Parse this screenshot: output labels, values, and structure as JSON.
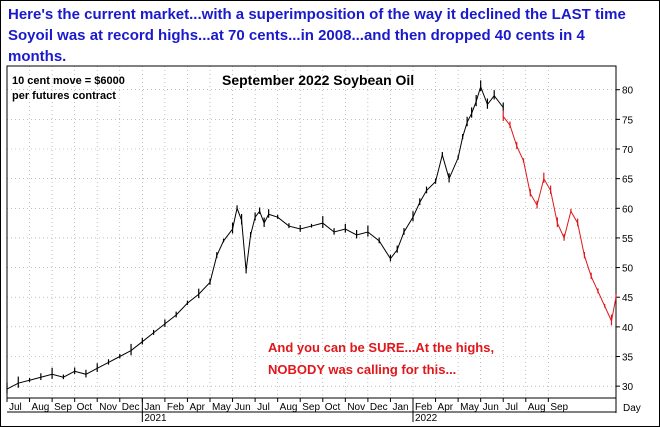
{
  "headline": "Here's the current market...with a superimposition of the way it declined the LAST time Soyoil was at record highs...at 70 cents...in 2008...and then dropped 40 cents in 4 months.",
  "note": {
    "line1": "10 cent move = $6000",
    "line2": "per futures contract"
  },
  "callout": {
    "line1": "And you can be SURE...At the highs,",
    "line2": "NOBODY was calling for this..."
  },
  "colors": {
    "headline": "#1a1acc",
    "price": "#000000",
    "projection": "#e0171b",
    "callout": "#e0171b",
    "grid": "#9a9a9a"
  },
  "chart_data": {
    "type": "line",
    "title": "September 2022 Soybean Oil",
    "xlabel": "Day",
    "ylabel": "",
    "ylim": [
      28,
      84
    ],
    "y_ticks": [
      30,
      35,
      40,
      45,
      50,
      55,
      60,
      65,
      70,
      75,
      80
    ],
    "grid": true,
    "x_labels": [
      "Jul",
      "Aug",
      "Sep",
      "Oct",
      "Nov",
      "Dec",
      "Jan",
      "Feb",
      "Apr",
      "May",
      "Jun",
      "Jul",
      "Aug",
      "Sep",
      "Oct",
      "Nov",
      "Dec",
      "Jan",
      "Feb",
      "Apr",
      "May",
      "Jun",
      "Jul",
      "Aug",
      "Sep"
    ],
    "year_labels": [
      {
        "label": "2021",
        "after_month": 6
      },
      {
        "label": "2022",
        "after_month": 18
      }
    ],
    "months_total": 27,
    "series": [
      {
        "style": "actual",
        "x": [
          0,
          0.5,
          1,
          1.5,
          2,
          2.5,
          3,
          3.5,
          4,
          4.5,
          5,
          5.5,
          6,
          6.5,
          7,
          7.5,
          8,
          8.5,
          9,
          9.3,
          9.6,
          10,
          10.2,
          10.4,
          10.6,
          10.8,
          11,
          11.2,
          11.4,
          11.6,
          12,
          12.5,
          13,
          13.5,
          14,
          14.5,
          15,
          15.5,
          16,
          16.5,
          17,
          17.3,
          17.6,
          18,
          18.3,
          18.6,
          19,
          19.3,
          19.6,
          20,
          20.2,
          20.4,
          20.6,
          20.8,
          21,
          21.3,
          21.6,
          22
        ],
        "y": [
          29.5,
          30.5,
          31,
          31.5,
          32,
          31.5,
          32.5,
          32,
          33,
          34,
          35,
          36,
          37.5,
          39,
          40.5,
          42,
          44,
          45.5,
          47.5,
          52,
          54.5,
          56.5,
          60,
          58,
          49.5,
          55.5,
          58.5,
          59.5,
          57.5,
          59,
          58.5,
          57,
          56.5,
          57,
          57.5,
          56,
          56.5,
          55.5,
          56,
          54.5,
          51.5,
          53,
          56,
          58.5,
          61,
          63,
          64.5,
          69,
          65,
          68.5,
          72,
          74.5,
          76,
          78,
          80.5,
          77.5,
          79,
          77
        ],
        "color": "#000000"
      },
      {
        "style": "2008 decline superimposed",
        "x": [
          22,
          22.3,
          22.6,
          22.9,
          23.2,
          23.5,
          23.8,
          24.1,
          24.4,
          24.7,
          25,
          25.3,
          25.6,
          25.9,
          26.2,
          26.5,
          26.8,
          27
        ],
        "y": [
          75.5,
          74,
          70.5,
          68,
          62.5,
          60.5,
          65,
          63,
          57.5,
          55,
          59.5,
          57.5,
          52,
          48.5,
          46,
          43.5,
          41,
          45
        ],
        "color": "#e0171b"
      }
    ]
  }
}
